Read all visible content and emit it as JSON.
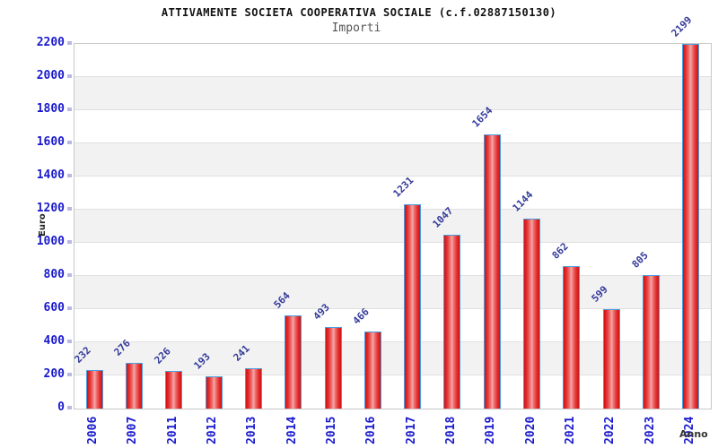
{
  "header": {
    "title": "ATTIVAMENTE SOCIETA COOPERATIVA SOCIALE (c.f.02887150130)",
    "subtitle": "Importi"
  },
  "chart_data": {
    "type": "bar",
    "title": "ATTIVAMENTE SOCIETA COOPERATIVA SOCIALE (c.f.02887150130)",
    "subtitle": "Importi",
    "xlabel": "Anno",
    "ylabel": "Euro",
    "categories": [
      "2006",
      "2007",
      "2011",
      "2012",
      "2013",
      "2014",
      "2015",
      "2016",
      "2017",
      "2018",
      "2019",
      "2020",
      "2021",
      "2022",
      "2023",
      "2024"
    ],
    "values": [
      232,
      276,
      226,
      193,
      241,
      564,
      493,
      466,
      1231,
      1047,
      1654,
      1144,
      862,
      599,
      805,
      2199
    ],
    "ylim": [
      0,
      2200
    ],
    "yticks": [
      0,
      200,
      400,
      600,
      800,
      1000,
      1200,
      1400,
      1600,
      1800,
      2000,
      2200
    ],
    "grid": true,
    "legend": false,
    "colors": {
      "bar_fill_dark": "#d21010",
      "bar_fill_light": "#f5a8a8",
      "bar_border": "#4a9ee0",
      "axis_tick_label": "#1a1acd",
      "value_label": "#333a99",
      "band_gray": "#f2f2f2",
      "gridline": "#e0e0e0",
      "title_color": "#111111",
      "subtitle_color": "#555555"
    }
  }
}
